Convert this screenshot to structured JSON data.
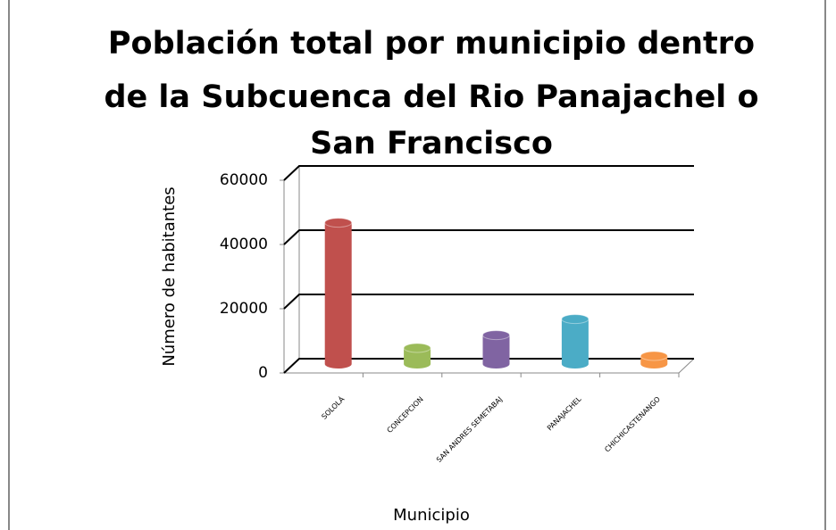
{
  "chart_data": {
    "type": "bar",
    "title_lines": [
      "Población total por municipio dentro",
      "de la Subcuenca del Rio Panajachel o",
      "San Francisco"
    ],
    "y_label": "Número de habitantes",
    "x_label": "Municipio",
    "categories": [
      "SOLOLÁ",
      "CONCEPCION",
      "SAN ANDRES SEMETABAJ",
      "PANAJACHEL",
      "CHICHICASTENANGO"
    ],
    "values": [
      44000,
      5000,
      9000,
      14000,
      2500
    ],
    "colors": [
      "#c0504d",
      "#9bbb59",
      "#8064a2",
      "#4bacc6",
      "#f79646"
    ],
    "ylim": [
      0,
      60000
    ],
    "yticks": [
      0,
      20000,
      40000,
      60000
    ],
    "grid": true
  }
}
